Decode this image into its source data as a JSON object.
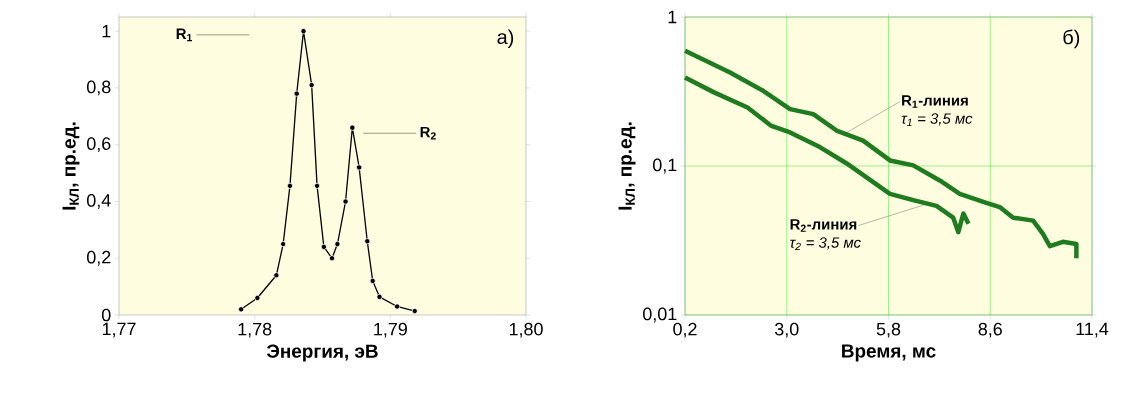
{
  "chart_data": [
    {
      "type": "line",
      "xlabel": "Энергия, эВ",
      "ylabel": "I$_{КЛ}$, пр.ед.",
      "x": [
        1.779,
        1.7802,
        1.7816,
        1.7821,
        1.7826,
        1.7831,
        1.7836,
        1.7842,
        1.7846,
        1.7851,
        1.7857,
        1.7861,
        1.7867,
        1.7872,
        1.7877,
        1.7883,
        1.7887,
        1.7892,
        1.7905,
        1.7918
      ],
      "series": [
        {
          "color": "#000000",
          "values": [
            0.02,
            0.06,
            0.14,
            0.25,
            0.455,
            0.78,
            1.0,
            0.81,
            0.455,
            0.24,
            0.2,
            0.25,
            0.4,
            0.66,
            0.52,
            0.26,
            0.12,
            0.064,
            0.03,
            0.014
          ]
        }
      ],
      "xlim": [
        1.77,
        1.8
      ],
      "ylim": [
        0,
        1.05
      ],
      "xticks": [
        {
          "value": 1.77,
          "label": "1,77"
        },
        {
          "value": 1.78,
          "label": "1,78"
        },
        {
          "value": 1.79,
          "label": "1,79"
        },
        {
          "value": 1.8,
          "label": "1,80"
        }
      ],
      "yticks": [
        0,
        {
          "value": 0.2,
          "label": "0,2"
        },
        {
          "value": 0.4,
          "label": "0,4"
        },
        {
          "value": 0.6,
          "label": "0,6"
        },
        {
          "value": 0.8,
          "label": "0,8"
        },
        1
      ],
      "marker": "circle",
      "line_style": "solid",
      "grid": false,
      "annotations": [
        "R$_{1}$",
        "R$_{2}$",
        "а)"
      ]
    },
    {
      "type": "line",
      "xlabel": "Время, мс",
      "ylabel": "I$_{КЛ}$, пр.ед.",
      "log": "y",
      "series": [
        {
          "color": "#1e7b1e",
          "x": [
            0.2,
            1.44,
            2.35,
            3.09,
            3.73,
            4.37,
            5.1,
            5.84,
            6.48,
            7.21,
            7.76,
            8.45,
            8.86,
            9.23,
            9.78,
            10.05,
            10.24,
            10.6,
            10.97,
            10.97
          ],
          "values": [
            0.593,
            0.424,
            0.32,
            0.241,
            0.223,
            0.173,
            0.148,
            0.109,
            0.101,
            0.08,
            0.065,
            0.057,
            0.053,
            0.045,
            0.043,
            0.035,
            0.029,
            0.031,
            0.03,
            0.024
          ]
        },
        {
          "color": "#1e7b1e",
          "x": [
            0.2,
            1.0,
            1.92,
            2.56,
            3.09,
            3.91,
            4.65,
            5.38,
            5.84,
            6.48,
            7.12,
            7.58,
            7.72,
            7.86,
            8.0
          ],
          "values": [
            0.393,
            0.312,
            0.247,
            0.187,
            0.168,
            0.134,
            0.104,
            0.078,
            0.065,
            0.059,
            0.054,
            0.045,
            0.036,
            0.048,
            0.041
          ]
        }
      ],
      "xlim": [
        0.2,
        11.4
      ],
      "ylim": [
        0.01,
        1
      ],
      "xticks": [
        {
          "value": 0.2,
          "label": "0,2"
        },
        {
          "value": 3.0,
          "label": "3,0"
        },
        {
          "value": 5.8,
          "label": "5,8"
        },
        {
          "value": 8.6,
          "label": "8,6"
        },
        {
          "value": 11.4,
          "label": "11,4"
        }
      ],
      "yticks": [
        {
          "value": 0.01,
          "label": "0,01"
        },
        {
          "value": 0.1,
          "label": "0,1"
        },
        1
      ],
      "marker": "none",
      "line_style": "solid",
      "grid": true,
      "annotations": [
        {
          "text": "R$_{1}$-линия",
          "x": 4.6,
          "y": 0.165
        },
        "τ$_{1}$ = 3,5 мс",
        {
          "text": "R$_{2}$-линия",
          "x": 6.9,
          "y": 0.056
        },
        "τ$_{2}$ = 3,5 мс",
        "б)"
      ]
    }
  ]
}
